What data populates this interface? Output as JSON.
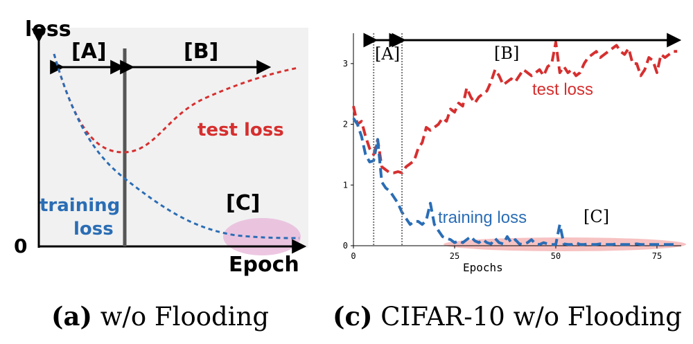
{
  "colors": {
    "test": "#d62f2f",
    "train": "#2a6db5",
    "panel_a_bg": "#f1f1f1",
    "highlight": "#f08f8f",
    "highlight_a": "#e7b4d8"
  },
  "panel_a": {
    "caption_letter": "(a)",
    "caption_rest": " w/o Flooding",
    "y_axis_label": "loss",
    "x_axis_label": "Epoch",
    "zero_label": "0",
    "region_a": "[A]",
    "region_b": "[B]",
    "region_c": "[C]",
    "test_label": "test loss",
    "train_label_1": "training",
    "train_label_2": "loss"
  },
  "panel_c": {
    "caption_letter": "(c)",
    "caption_rest": " CIFAR-10 w/o Flooding",
    "region_a": "[A]",
    "region_b": "[B]",
    "region_c": "[C]",
    "test_label": "test loss",
    "train_label": "training loss"
  },
  "chart_data": [
    {
      "type": "line",
      "title": "",
      "xlabel": "Epoch",
      "ylabel": "loss",
      "series": [
        {
          "name": "test loss",
          "x": [
            0.0,
            0.1,
            0.2,
            0.3,
            0.36,
            0.45,
            0.55,
            0.7,
            0.85,
            1.0
          ],
          "y": [
            0.95,
            0.62,
            0.43,
            0.36,
            0.35,
            0.39,
            0.49,
            0.62,
            0.72,
            0.8
          ]
        },
        {
          "name": "training loss",
          "x": [
            0.0,
            0.1,
            0.2,
            0.3,
            0.4,
            0.5,
            0.6,
            0.7,
            0.8,
            0.9,
            1.0
          ],
          "y": [
            0.95,
            0.63,
            0.43,
            0.3,
            0.2,
            0.13,
            0.08,
            0.05,
            0.035,
            0.03,
            0.03
          ]
        }
      ],
      "ylim": [
        0,
        1
      ],
      "xlim": [
        0,
        1
      ],
      "annotations": [
        "[A]",
        "[B]",
        "[C]"
      ]
    },
    {
      "type": "line",
      "title": "",
      "xlabel": "Epochs",
      "ylabel": "",
      "x_ticks": [
        0,
        25,
        50,
        75
      ],
      "y_ticks": [
        0,
        1,
        2,
        3
      ],
      "xlim": [
        0,
        81
      ],
      "ylim": [
        0,
        3.5
      ],
      "grid": false,
      "series": [
        {
          "name": "test loss",
          "x": [
            0,
            1,
            2,
            3,
            4,
            5,
            6,
            7,
            8,
            9,
            10,
            11,
            12,
            13,
            14,
            15,
            16,
            17,
            18,
            19,
            20,
            21,
            22,
            23,
            24,
            25,
            26,
            27,
            28,
            29,
            30,
            31,
            32,
            33,
            34,
            35,
            36,
            37,
            38,
            39,
            40,
            41,
            42,
            43,
            44,
            45,
            46,
            47,
            48,
            49,
            50,
            51,
            52,
            53,
            54,
            55,
            56,
            57,
            58,
            59,
            60,
            61,
            62,
            63,
            64,
            65,
            66,
            67,
            68,
            69,
            70,
            71,
            72,
            73,
            74,
            75,
            76,
            77,
            78,
            79,
            80
          ],
          "y": [
            2.3,
            2.0,
            2.05,
            1.8,
            1.6,
            1.5,
            1.75,
            1.3,
            1.25,
            1.2,
            1.2,
            1.22,
            1.2,
            1.3,
            1.35,
            1.4,
            1.6,
            1.7,
            1.95,
            1.9,
            1.95,
            2.0,
            2.1,
            2.05,
            2.25,
            2.2,
            2.35,
            2.3,
            2.6,
            2.45,
            2.35,
            2.45,
            2.5,
            2.55,
            2.7,
            2.9,
            2.8,
            2.65,
            2.7,
            2.75,
            2.7,
            2.8,
            2.9,
            2.85,
            2.8,
            2.85,
            2.9,
            2.8,
            2.95,
            3.0,
            3.35,
            2.85,
            2.95,
            2.85,
            2.9,
            2.8,
            2.85,
            3.0,
            3.1,
            3.15,
            3.2,
            3.1,
            3.15,
            3.2,
            3.25,
            3.3,
            3.2,
            3.15,
            3.25,
            3.0,
            3.0,
            2.8,
            2.9,
            3.1,
            3.05,
            2.85,
            3.15,
            3.1,
            3.15,
            3.2,
            3.2
          ]
        },
        {
          "name": "training loss",
          "x": [
            0,
            1,
            2,
            3,
            4,
            5,
            6,
            7,
            8,
            9,
            10,
            11,
            12,
            13,
            14,
            15,
            16,
            17,
            18,
            19,
            20,
            21,
            22,
            23,
            24,
            25,
            26,
            27,
            28,
            29,
            30,
            31,
            32,
            33,
            34,
            35,
            36,
            37,
            38,
            39,
            40,
            41,
            42,
            43,
            44,
            45,
            46,
            47,
            48,
            49,
            50,
            51,
            52,
            53,
            54,
            55,
            56,
            57,
            58,
            59,
            60,
            61,
            62,
            63,
            64,
            65,
            66,
            67,
            68,
            69,
            70,
            71,
            72,
            73,
            74,
            75,
            76,
            77,
            78,
            79,
            80
          ],
          "y": [
            2.1,
            2.0,
            1.8,
            1.5,
            1.38,
            1.4,
            1.75,
            1.05,
            0.95,
            0.9,
            0.8,
            0.7,
            0.55,
            0.45,
            0.35,
            0.4,
            0.4,
            0.35,
            0.42,
            0.7,
            0.35,
            0.25,
            0.15,
            0.12,
            0.1,
            0.05,
            0.08,
            0.05,
            0.1,
            0.15,
            0.08,
            0.05,
            0.1,
            0.05,
            0.03,
            0.12,
            0.05,
            0.03,
            0.15,
            0.05,
            0.1,
            0.03,
            0.02,
            0.05,
            0.1,
            0.03,
            0.02,
            0.05,
            0.03,
            0.02,
            0.02,
            0.35,
            0.03,
            0.02,
            0.02,
            0.05,
            0.02,
            0.02,
            0.03,
            0.02,
            0.02,
            0.03,
            0.02,
            0.02,
            0.02,
            0.03,
            0.02,
            0.02,
            0.02,
            0.02,
            0.03,
            0.02,
            0.02,
            0.02,
            0.02,
            0.02,
            0.02,
            0.02,
            0.02,
            0.02,
            0.02
          ]
        }
      ],
      "region_boundaries": [
        5,
        12
      ],
      "annotations": [
        "[A]",
        "[B]",
        "[C]"
      ]
    }
  ]
}
